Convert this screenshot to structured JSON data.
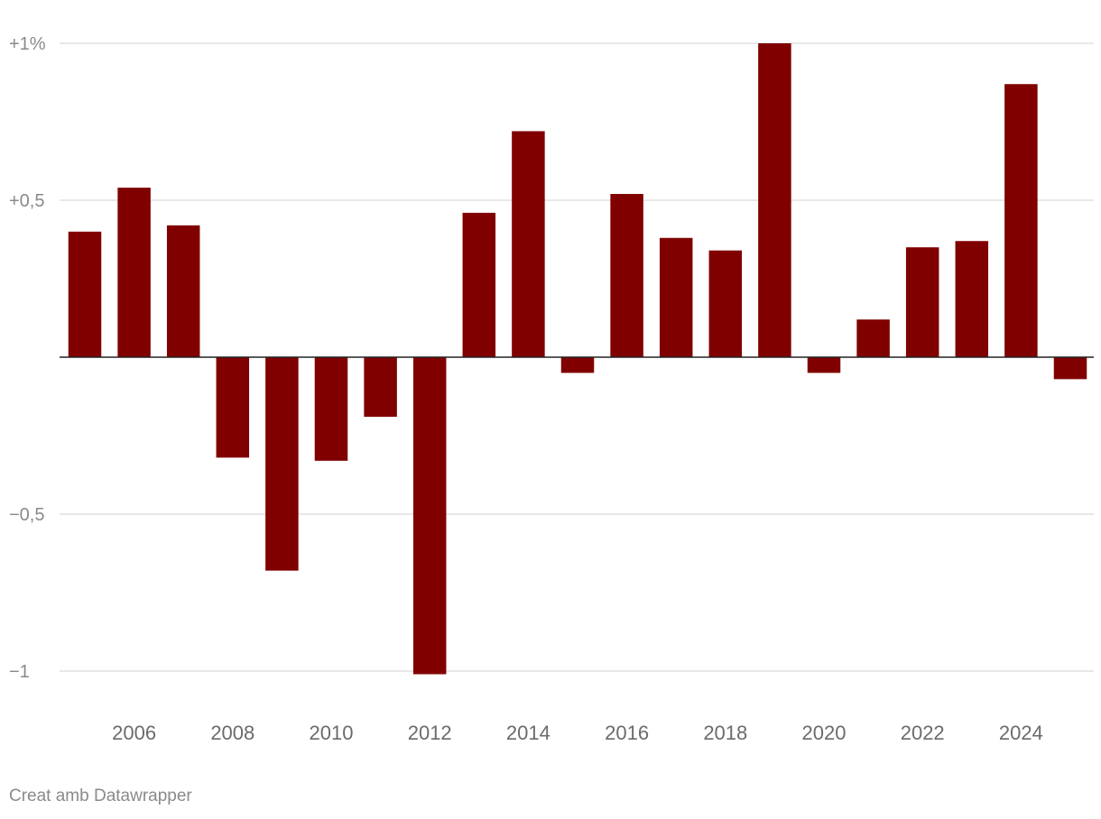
{
  "chart_data": {
    "type": "bar",
    "title": "",
    "xlabel": "",
    "ylabel": "",
    "categories": [
      "2005",
      "2006",
      "2007",
      "2008",
      "2009",
      "2010",
      "2011",
      "2012",
      "2013",
      "2014",
      "2015",
      "2016",
      "2017",
      "2018",
      "2019",
      "2020",
      "2021",
      "2022",
      "2023",
      "2024",
      "2025"
    ],
    "values": [
      0.4,
      0.54,
      0.42,
      -0.32,
      -0.68,
      -0.33,
      -0.19,
      -1.01,
      0.46,
      0.72,
      -0.05,
      0.52,
      0.38,
      0.34,
      1.0,
      -0.05,
      0.12,
      0.35,
      0.37,
      0.87,
      -0.07
    ],
    "ylim": [
      -1,
      1
    ],
    "y_ticks": [
      {
        "value": 1,
        "label": "+1%"
      },
      {
        "value": 0.5,
        "label": "+0,5"
      },
      {
        "value": -0.5,
        "label": "−0,5"
      },
      {
        "value": -1,
        "label": "−1"
      }
    ],
    "x_tick_labels": [
      "2006",
      "2008",
      "2010",
      "2012",
      "2014",
      "2016",
      "2018",
      "2020",
      "2022",
      "2024"
    ],
    "bar_color": "#800000",
    "grid": true,
    "legend": "none"
  },
  "credit": "Creat amb Datawrapper"
}
